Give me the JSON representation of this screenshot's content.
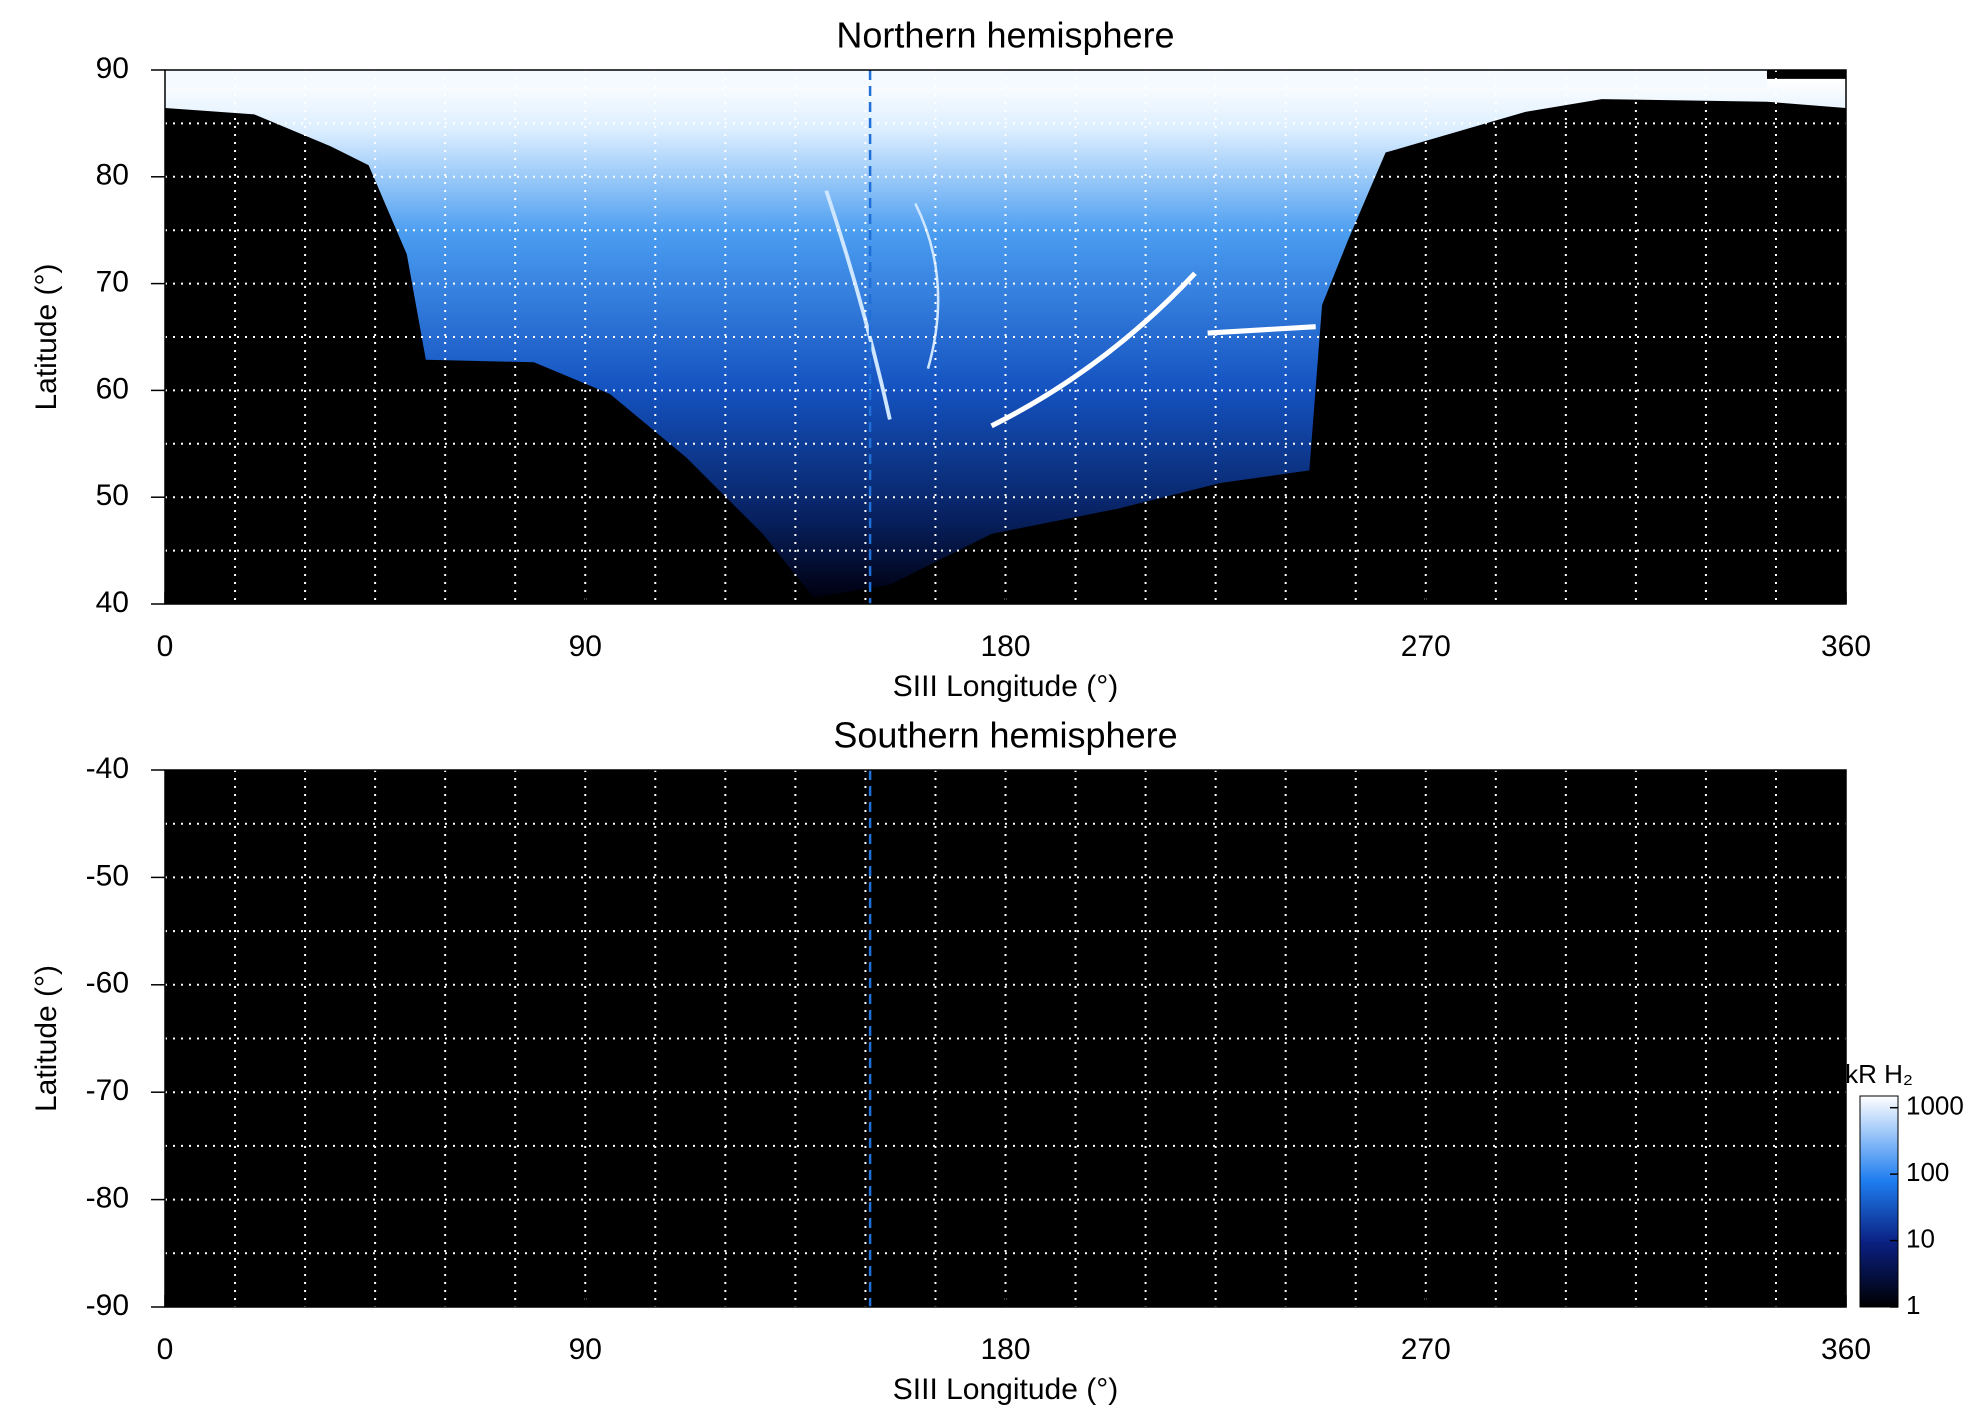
{
  "chart_data": [
    {
      "type": "heatmap",
      "title": "Northern hemisphere",
      "xlabel": "SIII Longitude (°)",
      "ylabel": "Latitude (°)",
      "xlim": [
        0,
        360
      ],
      "xticks": [
        0,
        90,
        180,
        270,
        360
      ],
      "ylim": [
        40,
        90
      ],
      "yticks": [
        40,
        50,
        60,
        70,
        80,
        90
      ],
      "xgrid": [
        15,
        30,
        45,
        60,
        75,
        90,
        105,
        120,
        135,
        150,
        165,
        180,
        195,
        210,
        225,
        240,
        255,
        270,
        285,
        300,
        315,
        330,
        345
      ],
      "ygrid": [
        45,
        50,
        55,
        60,
        65,
        70,
        75,
        80,
        85
      ],
      "vline": 151,
      "vline_color": "#1f6fd6",
      "grid": true
    },
    {
      "type": "heatmap",
      "title": "Southern hemisphere",
      "xlabel": "SIII Longitude (°)",
      "ylabel": "Latitude (°)",
      "xlim": [
        0,
        360
      ],
      "xticks": [
        0,
        90,
        180,
        270,
        360
      ],
      "ylim": [
        -90,
        -40
      ],
      "yticks": [
        -90,
        -80,
        -70,
        -60,
        -50,
        -40
      ],
      "xgrid": [
        15,
        30,
        45,
        60,
        75,
        90,
        105,
        120,
        135,
        150,
        165,
        180,
        195,
        210,
        225,
        240,
        255,
        270,
        285,
        300,
        315,
        330,
        345
      ],
      "ygrid": [
        -85,
        -80,
        -75,
        -70,
        -65,
        -60,
        -55,
        -50,
        -45
      ],
      "vline": 151,
      "vline_color": "#1f6fd6",
      "grid": true,
      "colorbar": {
        "label": "kR H₂",
        "log": true,
        "lim": [
          1,
          1500
        ],
        "ticks": [
          1,
          10,
          100,
          1000
        ]
      }
    }
  ]
}
